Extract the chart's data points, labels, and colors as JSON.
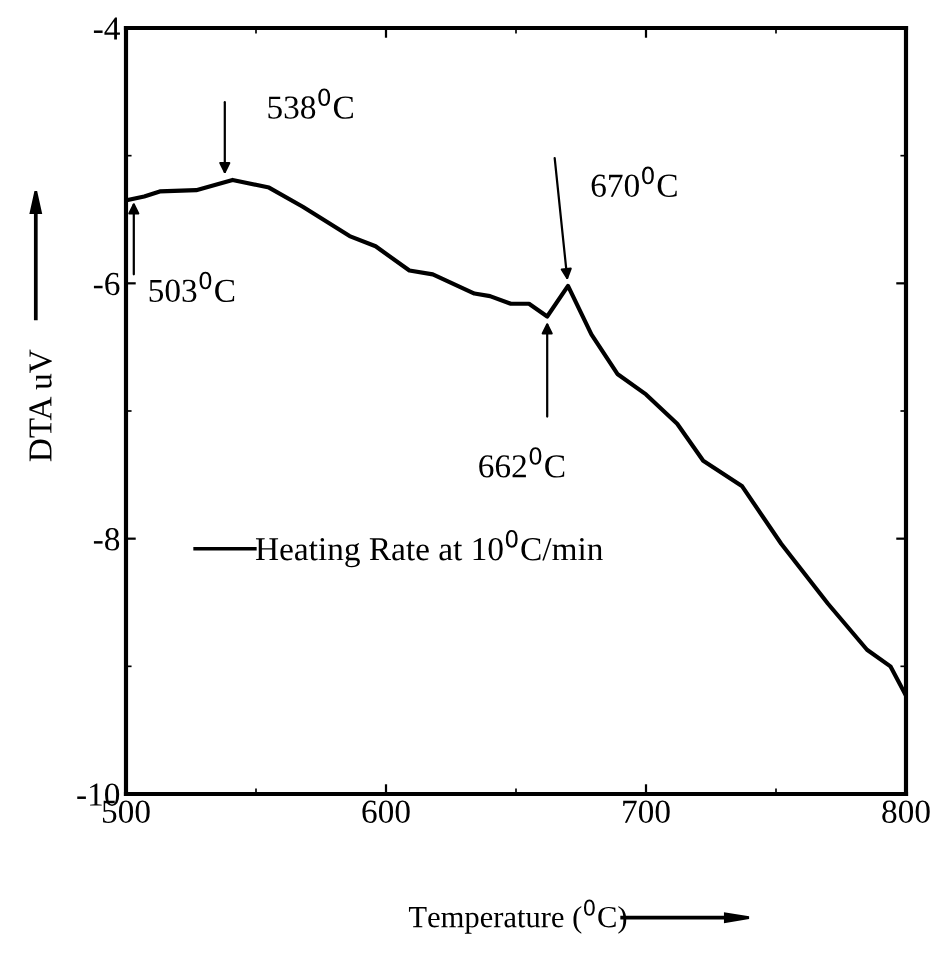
{
  "chart_data": {
    "type": "line",
    "xlabel": "Temperature ($^{0}$C)",
    "ylabel": "DTA uV",
    "x": [
      500,
      507,
      513,
      527,
      541,
      555,
      568,
      586,
      596,
      609,
      618,
      634,
      640,
      648,
      655,
      662,
      670,
      679,
      689,
      700,
      712,
      722,
      737,
      752,
      770,
      785,
      794,
      800
    ],
    "series": [
      {
        "name": "Heating Rate at 10$^{0}$C/min",
        "color": "#000000",
        "values": [
          -5.35,
          -5.32,
          -5.28,
          -5.27,
          -5.19,
          -5.25,
          -5.4,
          -5.63,
          -5.71,
          -5.9,
          -5.93,
          -6.08,
          -6.1,
          -6.16,
          -6.16,
          -6.26,
          -6.02,
          -6.4,
          -6.71,
          -6.87,
          -7.1,
          -7.39,
          -7.59,
          -8.04,
          -8.51,
          -8.87,
          -9.0,
          -9.23
        ]
      }
    ],
    "annotations": [
      {
        "text": "503$^{0}$C",
        "x": 503,
        "y": -5.32
      },
      {
        "text": "538$^{0}$C",
        "x": 538,
        "y": -5.19
      },
      {
        "text": "662$^{0}$C",
        "x": 662,
        "y": -6.26
      },
      {
        "text": "670$^{0}$C",
        "x": 670,
        "y": -6.02
      }
    ],
    "xlim": [
      500,
      800
    ],
    "ylim": [
      -10,
      -4
    ],
    "xticks": [
      500,
      600,
      700,
      800
    ],
    "yticks": [
      -4,
      -6,
      -8,
      -10
    ],
    "legend": "left",
    "grid": false,
    "marker": "none",
    "line_style": "solid"
  }
}
